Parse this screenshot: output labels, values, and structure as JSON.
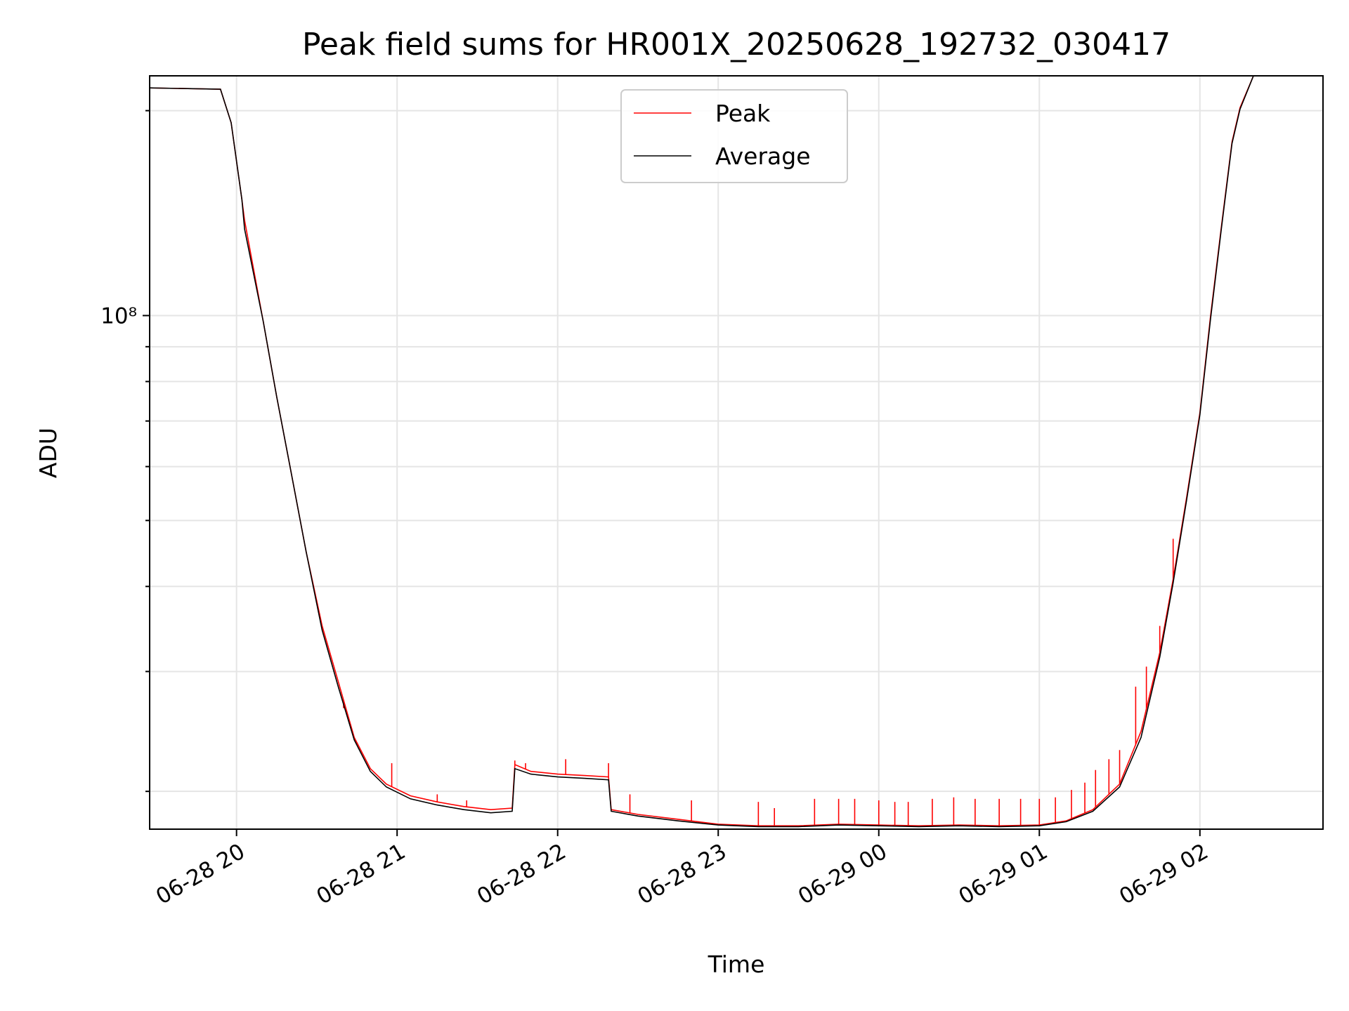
{
  "chart_data": {
    "type": "line",
    "title": "Peak field sums for HR001X_20250628_192732_030417",
    "xlabel": "Time",
    "ylabel": "ADU",
    "y_scale": "log",
    "x_range": [
      "2025-06-28T19:27:32",
      "2025-06-29T02:46:00"
    ],
    "ylim": [
      17600000,
      225000000
    ],
    "x_ticks": [
      {
        "value": "2025-06-28T20:00:00",
        "label": "06-28 20"
      },
      {
        "value": "2025-06-28T21:00:00",
        "label": "06-28 21"
      },
      {
        "value": "2025-06-28T22:00:00",
        "label": "06-28 22"
      },
      {
        "value": "2025-06-28T23:00:00",
        "label": "06-28 23"
      },
      {
        "value": "2025-06-29T00:00:00",
        "label": "06-29 00"
      },
      {
        "value": "2025-06-29T01:00:00",
        "label": "06-29 01"
      },
      {
        "value": "2025-06-29T02:00:00",
        "label": "06-29 02"
      }
    ],
    "y_major_tick": {
      "value": 100000000,
      "label": "10⁸"
    },
    "y_minor_ticks": [
      20000000,
      30000000,
      40000000,
      50000000,
      60000000,
      70000000,
      80000000,
      90000000,
      200000000
    ],
    "grid": true,
    "legend_position": "upper center",
    "series": [
      {
        "name": "Peak",
        "color": "#ff0000",
        "points": [
          [
            "2025-06-28T19:27:32",
            216000000
          ],
          [
            "2025-06-28T19:54:00",
            215000000
          ],
          [
            "2025-06-28T19:58:00",
            192000000
          ],
          [
            "2025-06-28T20:02:00",
            148000000
          ],
          [
            "2025-06-28T20:03:00",
            138000000
          ],
          [
            "2025-06-28T20:10:00",
            98000000
          ],
          [
            "2025-06-28T20:15:00",
            76000000
          ],
          [
            "2025-06-28T20:20:00",
            60000000
          ],
          [
            "2025-06-28T20:26:00",
            45000000
          ],
          [
            "2025-06-28T20:32:00",
            35000000
          ],
          [
            "2025-06-28T20:38:00",
            29000000
          ],
          [
            "2025-06-28T20:44:00",
            24000000
          ],
          [
            "2025-06-28T20:50:00",
            21600000
          ],
          [
            "2025-06-28T20:56:00",
            20500000
          ],
          [
            "2025-06-28T21:05:00",
            19700000
          ],
          [
            "2025-06-28T21:15:00",
            19300000
          ],
          [
            "2025-06-28T21:25:00",
            19000000
          ],
          [
            "2025-06-28T21:35:00",
            18800000
          ],
          [
            "2025-06-28T21:43:00",
            18900000
          ],
          [
            "2025-06-28T21:44:00",
            21900000
          ],
          [
            "2025-06-28T21:50:00",
            21400000
          ],
          [
            "2025-06-28T22:00:00",
            21200000
          ],
          [
            "2025-06-28T22:10:00",
            21100000
          ],
          [
            "2025-06-28T22:19:00",
            21000000
          ],
          [
            "2025-06-28T22:20:00",
            18800000
          ],
          [
            "2025-06-28T22:30:00",
            18500000
          ],
          [
            "2025-06-28T22:45:00",
            18200000
          ],
          [
            "2025-06-28T23:00:00",
            17900000
          ],
          [
            "2025-06-28T23:15:00",
            17800000
          ],
          [
            "2025-06-28T23:30:00",
            17800000
          ],
          [
            "2025-06-28T23:45:00",
            17900000
          ],
          [
            "2025-06-29T00:00:00",
            17850000
          ],
          [
            "2025-06-29T00:15:00",
            17800000
          ],
          [
            "2025-06-29T00:30:00",
            17850000
          ],
          [
            "2025-06-29T00:45:00",
            17800000
          ],
          [
            "2025-06-29T01:00:00",
            17850000
          ],
          [
            "2025-06-29T01:10:00",
            18100000
          ],
          [
            "2025-06-29T01:20:00",
            18800000
          ],
          [
            "2025-06-29T01:30:00",
            20500000
          ],
          [
            "2025-06-29T01:38:00",
            24500000
          ],
          [
            "2025-06-29T01:45:00",
            32000000
          ],
          [
            "2025-06-29T01:50:00",
            41000000
          ],
          [
            "2025-06-29T01:55:00",
            54000000
          ],
          [
            "2025-06-29T02:00:00",
            72000000
          ],
          [
            "2025-06-29T02:04:00",
            100000000
          ],
          [
            "2025-06-29T02:08:00",
            135000000
          ],
          [
            "2025-06-29T02:12:00",
            180000000
          ],
          [
            "2025-06-29T02:15:00",
            202000000
          ],
          [
            "2025-06-29T02:20:00",
            225000000
          ]
        ],
        "spikes": [
          [
            "2025-06-28T20:40:00",
            26500000
          ],
          [
            "2025-06-28T20:58:00",
            22000000
          ],
          [
            "2025-06-28T21:15:00",
            19800000
          ],
          [
            "2025-06-28T21:26:00",
            19400000
          ],
          [
            "2025-06-28T21:44:00",
            22200000
          ],
          [
            "2025-06-28T21:48:00",
            22000000
          ],
          [
            "2025-06-28T22:03:00",
            22300000
          ],
          [
            "2025-06-28T22:19:00",
            22000000
          ],
          [
            "2025-06-28T22:27:00",
            19800000
          ],
          [
            "2025-06-28T22:50:00",
            19400000
          ],
          [
            "2025-06-28T23:15:00",
            19300000
          ],
          [
            "2025-06-28T23:21:00",
            18900000
          ],
          [
            "2025-06-28T23:36:00",
            19500000
          ],
          [
            "2025-06-28T23:45:00",
            19500000
          ],
          [
            "2025-06-28T23:51:00",
            19500000
          ],
          [
            "2025-06-29T00:00:00",
            19400000
          ],
          [
            "2025-06-29T00:06:00",
            19300000
          ],
          [
            "2025-06-29T00:11:00",
            19300000
          ],
          [
            "2025-06-29T00:20:00",
            19500000
          ],
          [
            "2025-06-29T00:28:00",
            19600000
          ],
          [
            "2025-06-29T00:36:00",
            19500000
          ],
          [
            "2025-06-29T00:45:00",
            19500000
          ],
          [
            "2025-06-29T00:53:00",
            19500000
          ],
          [
            "2025-06-29T01:00:00",
            19500000
          ],
          [
            "2025-06-29T01:06:00",
            19600000
          ],
          [
            "2025-06-29T01:12:00",
            20100000
          ],
          [
            "2025-06-29T01:17:00",
            20600000
          ],
          [
            "2025-06-29T01:21:00",
            21500000
          ],
          [
            "2025-06-29T01:26:00",
            22300000
          ],
          [
            "2025-06-29T01:30:00",
            23000000
          ],
          [
            "2025-06-29T01:36:00",
            28500000
          ],
          [
            "2025-06-29T01:40:00",
            30500000
          ],
          [
            "2025-06-29T01:45:00",
            35000000
          ],
          [
            "2025-06-29T01:50:00",
            47000000
          ]
        ]
      },
      {
        "name": "Average",
        "color": "#000000",
        "points": [
          [
            "2025-06-28T19:27:32",
            216000000
          ],
          [
            "2025-06-28T19:54:00",
            215000000
          ],
          [
            "2025-06-28T19:58:00",
            192000000
          ],
          [
            "2025-06-28T20:02:00",
            148000000
          ],
          [
            "2025-06-28T20:03:00",
            134000000
          ],
          [
            "2025-06-28T20:10:00",
            98000000
          ],
          [
            "2025-06-28T20:15:00",
            76000000
          ],
          [
            "2025-06-28T20:20:00",
            60000000
          ],
          [
            "2025-06-28T20:26:00",
            45000000
          ],
          [
            "2025-06-28T20:32:00",
            34500000
          ],
          [
            "2025-06-28T20:38:00",
            28500000
          ],
          [
            "2025-06-28T20:44:00",
            23800000
          ],
          [
            "2025-06-28T20:50:00",
            21400000
          ],
          [
            "2025-06-28T20:56:00",
            20300000
          ],
          [
            "2025-06-28T21:05:00",
            19500000
          ],
          [
            "2025-06-28T21:15:00",
            19100000
          ],
          [
            "2025-06-28T21:25:00",
            18800000
          ],
          [
            "2025-06-28T21:35:00",
            18600000
          ],
          [
            "2025-06-28T21:43:00",
            18700000
          ],
          [
            "2025-06-28T21:44:00",
            21600000
          ],
          [
            "2025-06-28T21:50:00",
            21200000
          ],
          [
            "2025-06-28T22:00:00",
            21000000
          ],
          [
            "2025-06-28T22:10:00",
            20900000
          ],
          [
            "2025-06-28T22:19:00",
            20800000
          ],
          [
            "2025-06-28T22:20:00",
            18700000
          ],
          [
            "2025-06-28T22:30:00",
            18400000
          ],
          [
            "2025-06-28T22:45:00",
            18100000
          ],
          [
            "2025-06-28T23:00:00",
            17850000
          ],
          [
            "2025-06-28T23:15:00",
            17750000
          ],
          [
            "2025-06-28T23:30:00",
            17750000
          ],
          [
            "2025-06-28T23:45:00",
            17850000
          ],
          [
            "2025-06-29T00:00:00",
            17800000
          ],
          [
            "2025-06-29T00:15:00",
            17750000
          ],
          [
            "2025-06-29T00:30:00",
            17800000
          ],
          [
            "2025-06-29T00:45:00",
            17750000
          ],
          [
            "2025-06-29T01:00:00",
            17800000
          ],
          [
            "2025-06-29T01:10:00",
            18050000
          ],
          [
            "2025-06-29T01:20:00",
            18700000
          ],
          [
            "2025-06-29T01:30:00",
            20300000
          ],
          [
            "2025-06-29T01:38:00",
            24000000
          ],
          [
            "2025-06-29T01:45:00",
            31500000
          ],
          [
            "2025-06-29T01:50:00",
            40500000
          ],
          [
            "2025-06-29T01:55:00",
            53500000
          ],
          [
            "2025-06-29T02:00:00",
            71500000
          ],
          [
            "2025-06-29T02:04:00",
            99000000
          ],
          [
            "2025-06-29T02:08:00",
            134000000
          ],
          [
            "2025-06-29T02:12:00",
            179000000
          ],
          [
            "2025-06-29T02:15:00",
            201000000
          ],
          [
            "2025-06-29T02:20:00",
            225000000
          ]
        ]
      }
    ]
  }
}
